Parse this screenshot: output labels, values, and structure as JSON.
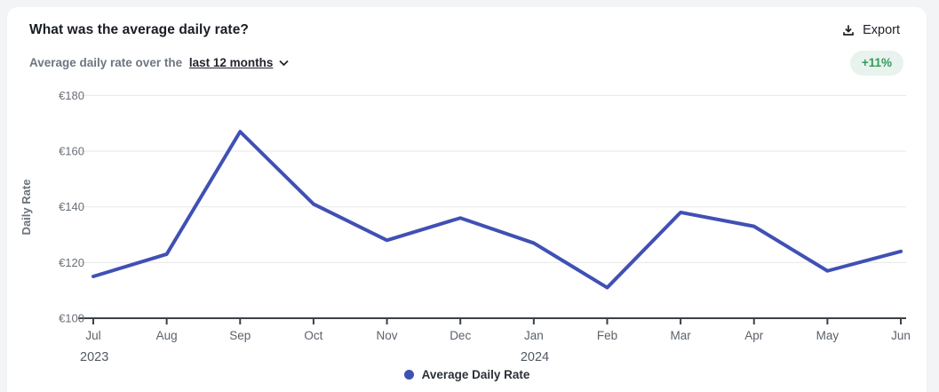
{
  "header": {
    "title": "What was the average daily rate?",
    "export_label": "Export",
    "subtitle_prefix": "Average daily rate over the",
    "subtitle_link": "last 12 months",
    "change_badge": "+11%"
  },
  "legend": {
    "label": "Average Daily Rate"
  },
  "colors": {
    "line": "#4050b4",
    "gridline": "#e5e7ea",
    "axis_line": "#3c4147",
    "y_tick_label": "#6a7078",
    "x_tick_label": "#5b626b",
    "year_label": "#535a63",
    "axis_title": "#6c737c",
    "badge_bg": "#e7f3ec",
    "badge_text": "#36985f"
  },
  "chart_data": {
    "type": "line",
    "x": [
      "Jul",
      "Aug",
      "Sep",
      "Oct",
      "Nov",
      "Dec",
      "Jan",
      "Feb",
      "Mar",
      "Apr",
      "May",
      "Jun"
    ],
    "year_labels": [
      {
        "label": "2023",
        "month_index": 0
      },
      {
        "label": "2024",
        "month_index": 6
      }
    ],
    "series": [
      {
        "name": "Average Daily Rate",
        "values": [
          115,
          123,
          167,
          141,
          128,
          136,
          127,
          111,
          138,
          133,
          117,
          124
        ]
      }
    ],
    "title": "Average daily rate over the last 12 months",
    "xlabel": "",
    "ylabel": "Daily Rate",
    "y_ticks": [
      "€100",
      "€120",
      "€140",
      "€160",
      "€180"
    ],
    "ylim": [
      100,
      180
    ],
    "y_step": 20,
    "currency": "€",
    "grid": true,
    "legend_position": "bottom"
  }
}
